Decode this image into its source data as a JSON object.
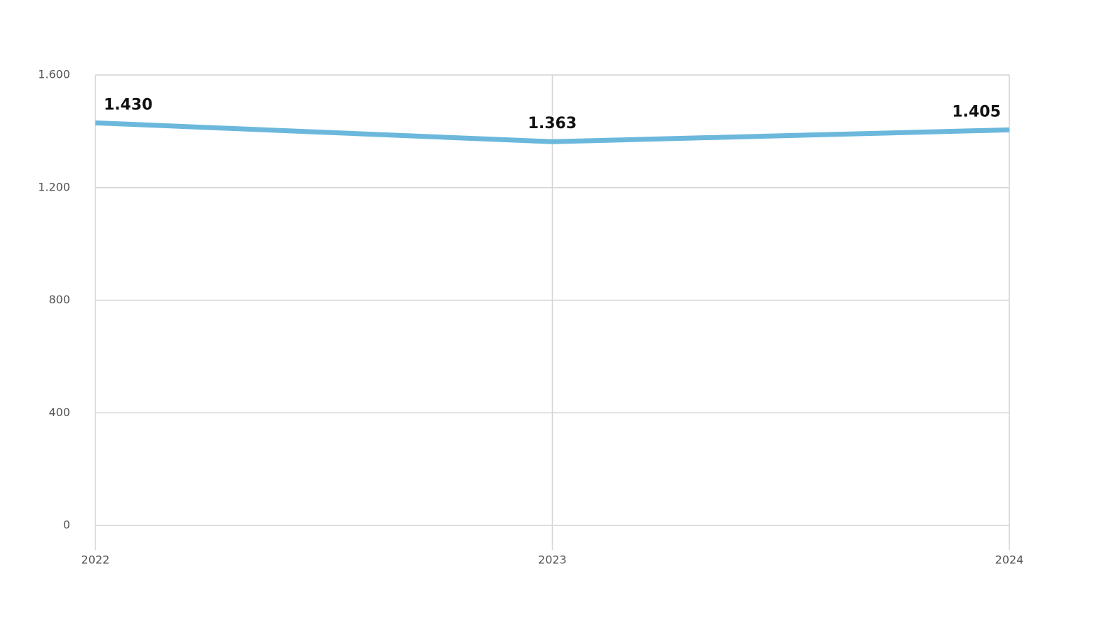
{
  "chart_data": {
    "type": "line",
    "categories": [
      "2022",
      "2023",
      "2024"
    ],
    "series": [
      {
        "color": "#6bb8dc",
        "values": [
          1430,
          1363,
          1405
        ],
        "value_labels": [
          "1.430",
          "1.363",
          "1.405"
        ]
      }
    ],
    "ylim": [
      0,
      1600
    ],
    "yticks": [
      0,
      400,
      800,
      {
        "value": 1200,
        "label": "1.200"
      },
      {
        "value": 1600,
        "label": "1.600"
      }
    ],
    "grid": true
  }
}
